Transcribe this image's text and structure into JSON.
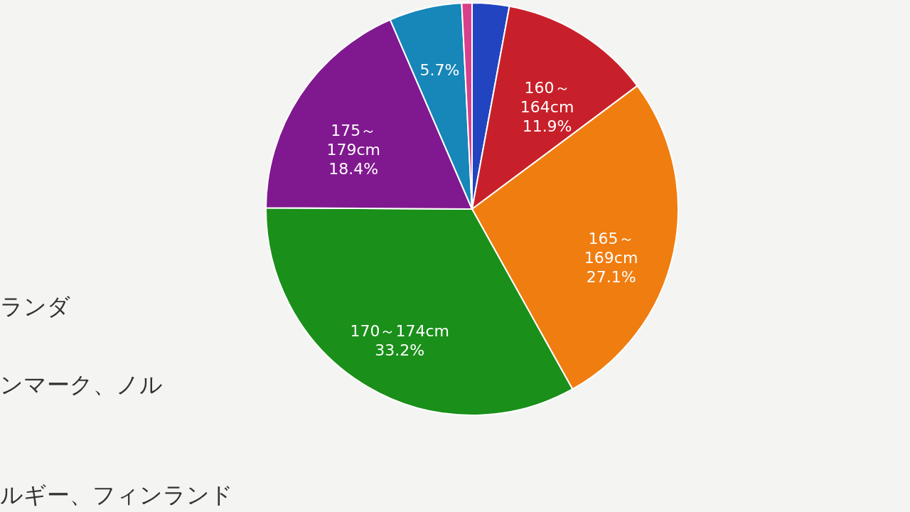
{
  "chart_data": {
    "type": "pie",
    "categories": [
      null,
      "160～164cm",
      "165～169cm",
      "170～174cm",
      "175～179cm",
      null,
      null
    ],
    "values": [
      2.9,
      11.9,
      27.1,
      33.2,
      18.4,
      5.7,
      0.8
    ],
    "value_labels": [
      null,
      "11.9%",
      "27.1%",
      "33.2%",
      "18.4%",
      "5.7%",
      null
    ],
    "colors": [
      "#2244c0",
      "#c8202a",
      "#f07d10",
      "#1a8f1a",
      "#80198f",
      "#1786b8",
      "#d8408a"
    ],
    "annotations": [
      "ランダ",
      "ンマーク、ノル",
      "ルギー、フィンランド"
    ],
    "legend": false
  }
}
